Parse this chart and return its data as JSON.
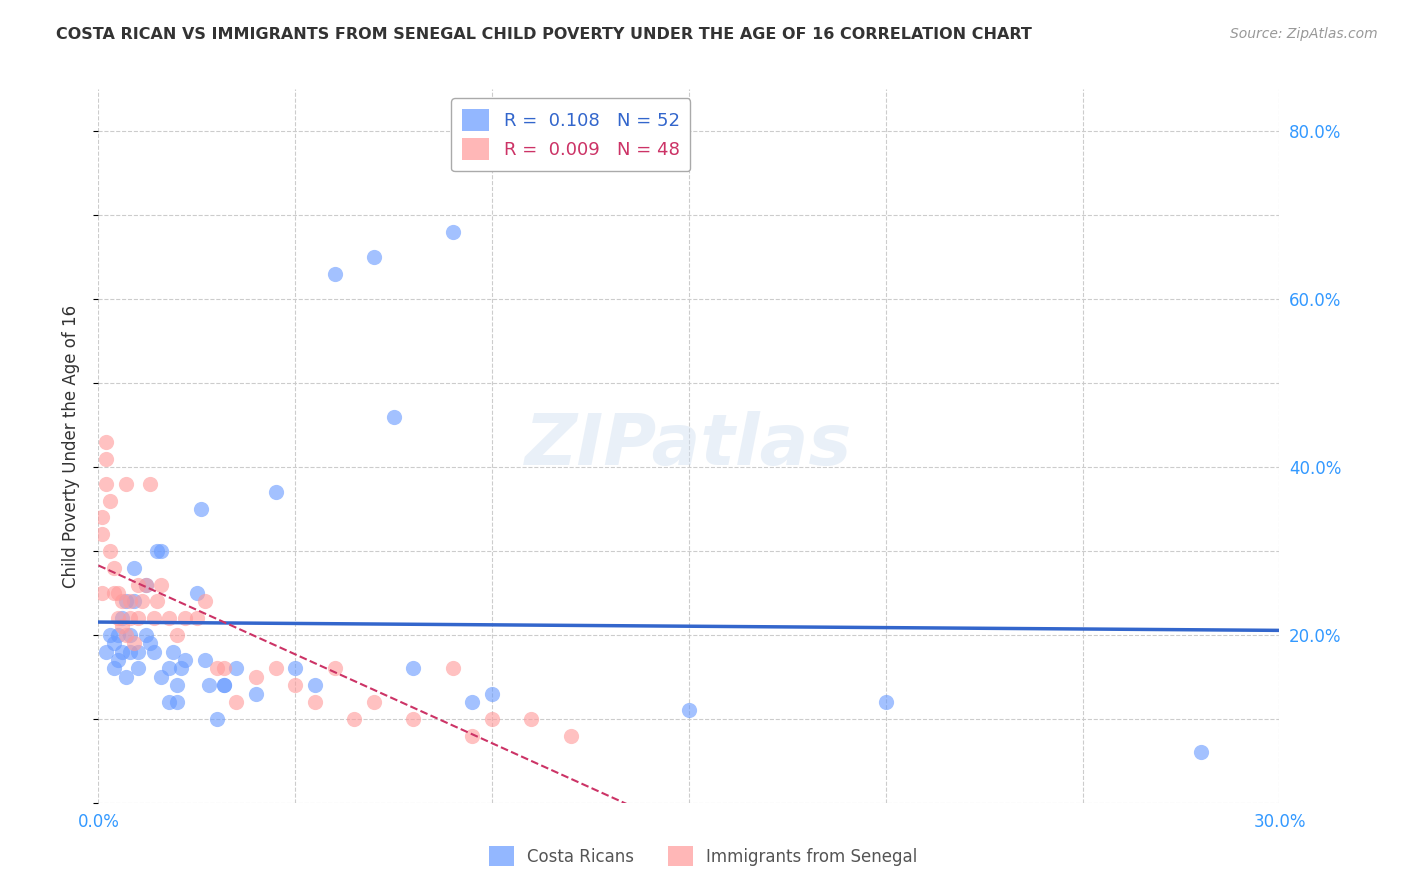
{
  "title": "COSTA RICAN VS IMMIGRANTS FROM SENEGAL CHILD POVERTY UNDER THE AGE OF 16 CORRELATION CHART",
  "source": "Source: ZipAtlas.com",
  "ylabel": "Child Poverty Under the Age of 16",
  "xlabel": "",
  "xlim": [
    0.0,
    0.3
  ],
  "ylim": [
    0.0,
    0.85
  ],
  "yticks": [
    0.0,
    0.2,
    0.4,
    0.6,
    0.8
  ],
  "xticks": [
    0.0,
    0.05,
    0.1,
    0.15,
    0.2,
    0.25,
    0.3
  ],
  "xtick_labels": [
    "0.0%",
    "",
    "",
    "",
    "",
    "",
    "30.0%"
  ],
  "ytick_labels_right": [
    "",
    "20.0%",
    "40.0%",
    "60.0%",
    "80.0%"
  ],
  "background_color": "#ffffff",
  "grid_color": "#cccccc",
  "blue_color": "#6699ff",
  "pink_color": "#ff9999",
  "blue_line_color": "#3366cc",
  "pink_line_color": "#cc3366",
  "watermark": "ZIPatlas",
  "legend_r1": "R =  0.108   N = 52",
  "legend_r2": "R =  0.009   N = 48",
  "blue_scatter_x": [
    0.002,
    0.003,
    0.004,
    0.004,
    0.005,
    0.005,
    0.006,
    0.006,
    0.007,
    0.007,
    0.008,
    0.008,
    0.009,
    0.009,
    0.01,
    0.01,
    0.012,
    0.012,
    0.013,
    0.014,
    0.015,
    0.016,
    0.016,
    0.018,
    0.018,
    0.019,
    0.02,
    0.02,
    0.021,
    0.022,
    0.025,
    0.026,
    0.027,
    0.028,
    0.03,
    0.032,
    0.032,
    0.035,
    0.04,
    0.045,
    0.05,
    0.055,
    0.06,
    0.07,
    0.075,
    0.08,
    0.09,
    0.095,
    0.1,
    0.15,
    0.2,
    0.28
  ],
  "blue_scatter_y": [
    0.18,
    0.2,
    0.16,
    0.19,
    0.2,
    0.17,
    0.22,
    0.18,
    0.15,
    0.24,
    0.2,
    0.18,
    0.28,
    0.24,
    0.16,
    0.18,
    0.26,
    0.2,
    0.19,
    0.18,
    0.3,
    0.3,
    0.15,
    0.16,
    0.12,
    0.18,
    0.14,
    0.12,
    0.16,
    0.17,
    0.25,
    0.35,
    0.17,
    0.14,
    0.1,
    0.14,
    0.14,
    0.16,
    0.13,
    0.37,
    0.16,
    0.14,
    0.63,
    0.65,
    0.46,
    0.16,
    0.68,
    0.12,
    0.13,
    0.11,
    0.12,
    0.06
  ],
  "pink_scatter_x": [
    0.001,
    0.001,
    0.001,
    0.002,
    0.002,
    0.002,
    0.003,
    0.003,
    0.004,
    0.004,
    0.005,
    0.005,
    0.006,
    0.006,
    0.007,
    0.007,
    0.008,
    0.008,
    0.009,
    0.01,
    0.01,
    0.011,
    0.012,
    0.013,
    0.014,
    0.015,
    0.016,
    0.018,
    0.02,
    0.022,
    0.025,
    0.027,
    0.03,
    0.032,
    0.035,
    0.04,
    0.045,
    0.05,
    0.055,
    0.06,
    0.065,
    0.07,
    0.08,
    0.09,
    0.095,
    0.1,
    0.11,
    0.12
  ],
  "pink_scatter_y": [
    0.34,
    0.25,
    0.32,
    0.43,
    0.41,
    0.38,
    0.36,
    0.3,
    0.25,
    0.28,
    0.25,
    0.22,
    0.24,
    0.21,
    0.2,
    0.38,
    0.24,
    0.22,
    0.19,
    0.22,
    0.26,
    0.24,
    0.26,
    0.38,
    0.22,
    0.24,
    0.26,
    0.22,
    0.2,
    0.22,
    0.22,
    0.24,
    0.16,
    0.16,
    0.12,
    0.15,
    0.16,
    0.14,
    0.12,
    0.16,
    0.1,
    0.12,
    0.1,
    0.16,
    0.08,
    0.1,
    0.1,
    0.08
  ]
}
